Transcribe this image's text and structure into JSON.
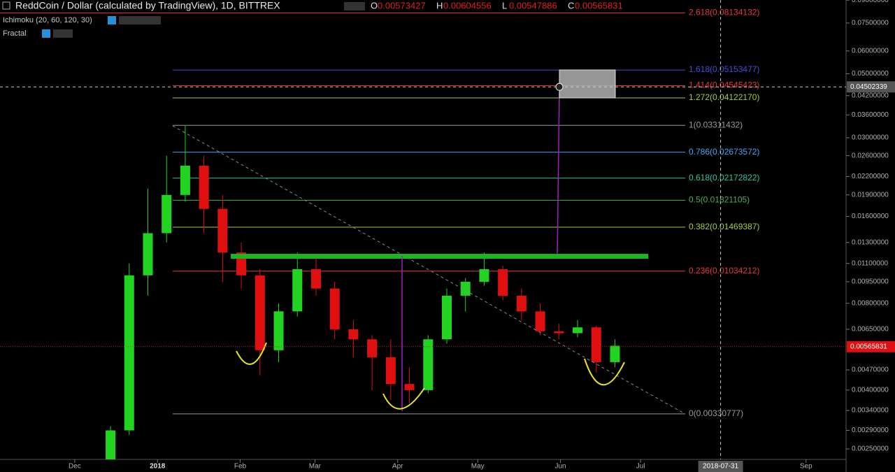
{
  "chart_data": {
    "type": "candlestick",
    "title": "ReddCoin / Dollar (calculated by TradingView), 1D, BITTREX",
    "indicators": [
      "Ichimoku (20, 60, 120, 30)",
      "Fractal"
    ],
    "ohlc_labels": [
      "O",
      "H",
      "L",
      "C"
    ],
    "ohlc_values": [
      0.00573427,
      0.00604556,
      0.00547886,
      0.00565831
    ],
    "log_scale": true,
    "grid": false,
    "up_color": "#22d322",
    "down_color": "#e01010",
    "x": [
      "2017-12-11",
      "2017-12-18",
      "2017-12-25",
      "2018-01-01",
      "2018-01-08",
      "2018-01-15",
      "2018-01-22",
      "2018-01-29",
      "2018-02-05",
      "2018-02-12",
      "2018-02-19",
      "2018-02-26",
      "2018-03-05",
      "2018-03-12",
      "2018-03-19",
      "2018-03-26",
      "2018-04-02",
      "2018-04-09",
      "2018-04-16",
      "2018-04-23",
      "2018-04-30",
      "2018-05-07",
      "2018-05-14",
      "2018-05-21",
      "2018-05-28",
      "2018-06-04",
      "2018-06-11",
      "2018-06-18"
    ],
    "open": [
      0.0023,
      0.0029,
      0.01,
      0.014,
      0.019,
      0.024,
      0.017,
      0.012,
      0.01,
      0.0055,
      0.0075,
      0.0105,
      0.009,
      0.0065,
      0.006,
      0.0052,
      0.0042,
      0.004,
      0.006,
      0.0085,
      0.0095,
      0.0105,
      0.0085,
      0.0075,
      0.0064,
      0.0063,
      0.0066,
      0.005
    ],
    "high": [
      0.003,
      0.011,
      0.02,
      0.026,
      0.033,
      0.026,
      0.019,
      0.013,
      0.0105,
      0.008,
      0.012,
      0.0118,
      0.0095,
      0.007,
      0.0062,
      0.006,
      0.0048,
      0.0062,
      0.009,
      0.0098,
      0.012,
      0.0108,
      0.009,
      0.008,
      0.0068,
      0.007,
      0.0067,
      0.006
    ],
    "low": [
      0.0023,
      0.0028,
      0.0085,
      0.013,
      0.018,
      0.014,
      0.0095,
      0.009,
      0.0045,
      0.005,
      0.0072,
      0.0085,
      0.006,
      0.0052,
      0.004,
      0.0037,
      0.0036,
      0.0039,
      0.0058,
      0.0075,
      0.0092,
      0.0082,
      0.007,
      0.0062,
      0.006,
      0.0061,
      0.0046,
      0.0048
    ],
    "close": [
      0.0029,
      0.01,
      0.014,
      0.019,
      0.024,
      0.017,
      0.012,
      0.01,
      0.0055,
      0.0075,
      0.0105,
      0.009,
      0.0065,
      0.006,
      0.0052,
      0.0042,
      0.004,
      0.006,
      0.0085,
      0.0095,
      0.0105,
      0.0085,
      0.0075,
      0.0064,
      0.0063,
      0.0066,
      0.005,
      0.0057
    ],
    "xlim": [
      "2017-11-03",
      "2018-09-16"
    ],
    "xticks": [
      {
        "value": "2017-12-01",
        "label": "Dec"
      },
      {
        "value": "2018-01-01",
        "label": "2018"
      },
      {
        "value": "2018-02-01",
        "label": "Feb"
      },
      {
        "value": "2018-03-01",
        "label": "Mar"
      },
      {
        "value": "2018-04-01",
        "label": "Apr"
      },
      {
        "value": "2018-05-01",
        "label": "May"
      },
      {
        "value": "2018-06-01",
        "label": "Jun"
      },
      {
        "value": "2018-07-01",
        "label": "Jul"
      },
      {
        "value": "2018-09-01",
        "label": "Sep"
      }
    ],
    "ylim": [
      0.0023,
      0.0901
    ],
    "yticks": [
      {
        "value": 0.09,
        "label": "0.09000000"
      },
      {
        "value": 0.075,
        "label": "0.07500000"
      },
      {
        "value": 0.06,
        "label": "0.06000000"
      },
      {
        "value": 0.05,
        "label": "0.05000000"
      },
      {
        "value": 0.042,
        "label": "0.04200000"
      },
      {
        "value": 0.036,
        "label": "0.03600000"
      },
      {
        "value": 0.03,
        "label": "0.03000000"
      },
      {
        "value": 0.026,
        "label": "0.02600000"
      },
      {
        "value": 0.022,
        "label": "0.02200000"
      },
      {
        "value": 0.019,
        "label": "0.01900000"
      },
      {
        "value": 0.016,
        "label": "0.01600000"
      },
      {
        "value": 0.013,
        "label": "0.01300000"
      },
      {
        "value": 0.011,
        "label": "0.01100000"
      },
      {
        "value": 0.0095,
        "label": "0.00950000"
      },
      {
        "value": 0.008,
        "label": "0.00800000"
      },
      {
        "value": 0.0065,
        "label": "0.00650000"
      },
      {
        "value": 0.0047,
        "label": "0.00470000"
      },
      {
        "value": 0.004,
        "label": "0.00400000"
      },
      {
        "value": 0.0034,
        "label": "0.00340000"
      },
      {
        "value": 0.0029,
        "label": "0.00290000"
      },
      {
        "value": 0.0025,
        "label": "0.00250000"
      }
    ],
    "fib_levels": [
      {
        "label": "2.618(0.08134132)",
        "value": 0.08134132,
        "color": "#e53935"
      },
      {
        "label": "1.618(0.05153477)",
        "value": 0.05153477,
        "color": "#4a4ad8"
      },
      {
        "label": "1.414(0.04545423)",
        "value": 0.04545423,
        "color": "#e53935"
      },
      {
        "label": "1.272(0.04122170)",
        "value": 0.0412217,
        "color": "#a5cc3a"
      },
      {
        "label": "1(0.03311432)",
        "value": 0.03311432,
        "color": "#9a9a9a"
      },
      {
        "label": "0.786(0.02673572)",
        "value": 0.02673572,
        "color": "#42a5f5"
      },
      {
        "label": "0.618(0.02172822)",
        "value": 0.02172822,
        "color": "#2ec4a0"
      },
      {
        "label": "0.5(0.01821105)",
        "value": 0.01821105,
        "color": "#4caf50"
      },
      {
        "label": "0.382(0.01469387)",
        "value": 0.01469387,
        "color": "#a5cc3a"
      },
      {
        "label": "0.236(0.01034212)",
        "value": 0.01034212,
        "color": "#e53935"
      },
      {
        "label": "0(0.00330777)",
        "value": 0.00330777,
        "color": "#9a9a9a"
      }
    ],
    "crosshair": {
      "price": 0.04502339,
      "date": "2018-07-31"
    }
  }
}
